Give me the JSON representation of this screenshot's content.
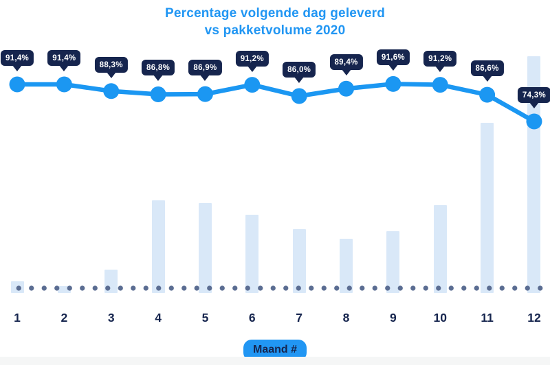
{
  "title": {
    "line1": "Percentage volgende dag geleverd",
    "line2": "vs pakketvolume 2020"
  },
  "x_axis_badge": "Maand #",
  "colors": {
    "accent_blue": "#2196f3",
    "line_blue": "#1b97f2",
    "navy": "#16254e",
    "bar_fill": "#d9e8f8",
    "dot_gray_blue": "#5b6d92",
    "bottom_strip": "#f5f6f6"
  },
  "chart_data": {
    "type": "line+bar combo",
    "title": "Percentage volgende dag geleverd vs pakketvolume 2020",
    "xlabel": "Maand #",
    "ylabel": "",
    "categories": [
      "1",
      "2",
      "3",
      "4",
      "5",
      "6",
      "7",
      "8",
      "9",
      "10",
      "11",
      "12"
    ],
    "legend": "none",
    "grid": "off",
    "series": [
      {
        "name": "Percentage volgende dag geleverd",
        "type": "line",
        "values": [
          91.4,
          91.4,
          88.3,
          86.8,
          86.9,
          91.2,
          86.0,
          89.4,
          91.6,
          91.2,
          86.6,
          74.3
        ],
        "labels": [
          "91,4%",
          "91,4%",
          "88,3%",
          "86,8%",
          "86,9%",
          "91,2%",
          "86,0%",
          "89,4%",
          "91,6%",
          "91,2%",
          "86,6%",
          "74,3%"
        ]
      },
      {
        "name": "Pakketvolume",
        "type": "bar",
        "units": "relative, estimated from bar heights (december = 100)",
        "values": [
          5,
          3,
          10,
          39,
          38,
          33,
          27,
          23,
          26,
          37,
          72,
          100
        ]
      }
    ],
    "baseline": "dotted row at x-axis"
  }
}
